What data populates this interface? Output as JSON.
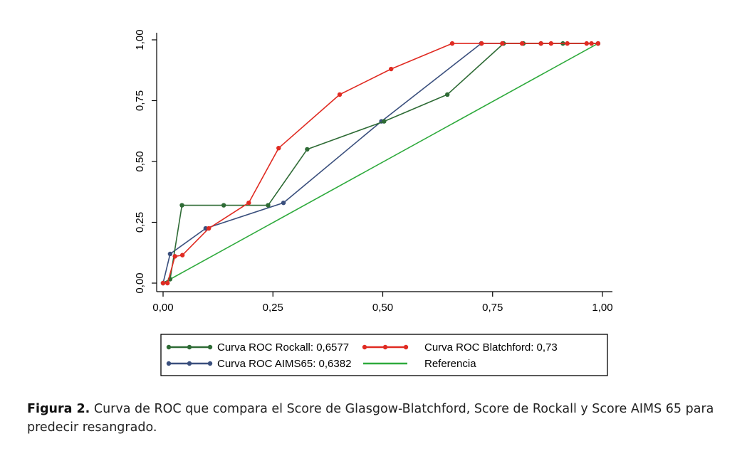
{
  "chart_data": {
    "type": "line",
    "x_ticks": [
      "0,00",
      "0,25",
      "0,50",
      "0,75",
      "1,00"
    ],
    "y_ticks": [
      "0,00",
      "0,25",
      "0,50",
      "0,75",
      "1,00"
    ],
    "xlim": [
      0,
      1
    ],
    "ylim": [
      0,
      1
    ],
    "grid": false,
    "legend_position": "bottom",
    "series": [
      {
        "name": "Curva ROC Rockall: 0,6577",
        "color": "#2e6b35",
        "markers": true,
        "x": [
          0.0,
          0.016,
          0.043,
          0.138,
          0.239,
          0.328,
          0.503,
          0.647,
          0.775,
          0.82,
          0.86,
          0.91,
          0.99
        ],
        "y": [
          0.0,
          0.016,
          0.32,
          0.32,
          0.32,
          0.55,
          0.665,
          0.775,
          0.985,
          0.985,
          0.985,
          0.985,
          0.985
        ]
      },
      {
        "name": "Curva ROC Blatchford: 0,73",
        "color": "#e02b22",
        "markers": true,
        "x": [
          0.0,
          0.01,
          0.027,
          0.044,
          0.104,
          0.195,
          0.263,
          0.402,
          0.519,
          0.658,
          0.725,
          0.772,
          0.817,
          0.86,
          0.883,
          0.92,
          0.964,
          0.975,
          0.99
        ],
        "y": [
          0.0,
          0.0,
          0.11,
          0.115,
          0.225,
          0.33,
          0.555,
          0.775,
          0.88,
          0.985,
          0.985,
          0.985,
          0.985,
          0.985,
          0.985,
          0.985,
          0.985,
          0.985,
          0.985
        ]
      },
      {
        "name": "Curva ROC AIMS65: 0,6382",
        "color": "#3a4f7d",
        "markers": true,
        "x": [
          0.0,
          0.016,
          0.097,
          0.274,
          0.497,
          0.724,
          0.99
        ],
        "y": [
          0.0,
          0.12,
          0.225,
          0.33,
          0.665,
          0.985,
          0.985
        ]
      },
      {
        "name": "Referencia",
        "color": "#2eaa3c",
        "markers": false,
        "x": [
          0.0,
          0.99
        ],
        "y": [
          0.0,
          0.985
        ]
      }
    ]
  },
  "caption": {
    "label": "Figura 2.",
    "text": " Curva de ROC que compara el Score de Glasgow-Blatchford, Score de Rockall y Score AIMS 65 para predecir resangrado."
  }
}
